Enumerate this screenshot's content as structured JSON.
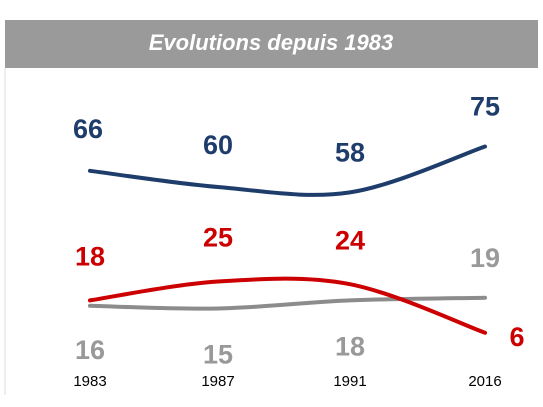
{
  "chart_data": {
    "type": "line",
    "title": "Evolutions depuis 1983",
    "categories": [
      "1983",
      "1987",
      "1991",
      "2016"
    ],
    "series": [
      {
        "color": "#1f3d6b",
        "values": [
          66,
          60,
          58,
          75
        ]
      },
      {
        "color": "#cc0000",
        "values": [
          18,
          25,
          24,
          6
        ]
      },
      {
        "color": "#8c8c8c",
        "values": [
          16,
          15,
          18,
          19
        ]
      }
    ]
  }
}
